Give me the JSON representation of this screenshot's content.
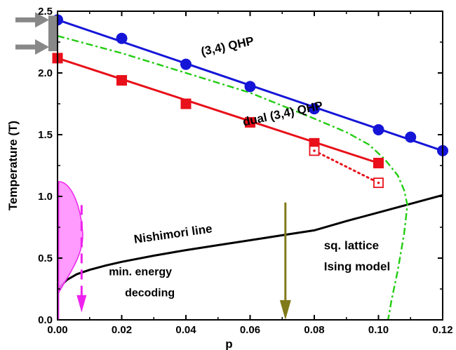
{
  "chart_data": {
    "type": "line",
    "title": "",
    "xlabel": "p",
    "ylabel": "Temperature (T)",
    "xlim": [
      0.0,
      0.12
    ],
    "ylim": [
      0.0,
      2.5
    ],
    "xticks": [
      0.0,
      0.02,
      0.04,
      0.06,
      0.08,
      0.1,
      0.12
    ],
    "xtick_labels": [
      "0.00",
      "0.02",
      "0.04",
      "0.06",
      "0.08",
      "0.10",
      "0.12"
    ],
    "yticks": [
      0.0,
      0.5,
      1.0,
      1.5,
      2.0,
      2.5
    ],
    "ytick_labels": [
      "0.0",
      "0.5",
      "1.0",
      "1.5",
      "2.0",
      "2.5"
    ],
    "grid": false,
    "legend": "none",
    "series": [
      {
        "name": "(3,4) QHP",
        "color": "#1515d8",
        "marker": "circle",
        "points": [
          [
            0.0,
            2.43
          ],
          [
            0.02,
            2.28
          ],
          [
            0.04,
            2.07
          ],
          [
            0.06,
            1.89
          ],
          [
            0.08,
            1.71
          ],
          [
            0.1,
            1.54
          ],
          [
            0.11,
            1.48
          ],
          [
            0.12,
            1.37
          ]
        ],
        "fit": [
          [
            0.0,
            2.43
          ],
          [
            0.12,
            1.37
          ]
        ]
      },
      {
        "name": "dual (3,4) QHP",
        "color": "#e8101a",
        "marker": "square",
        "points": [
          [
            0.0,
            2.12
          ],
          [
            0.02,
            1.94
          ],
          [
            0.04,
            1.75
          ],
          [
            0.06,
            1.6
          ],
          [
            0.08,
            1.43
          ],
          [
            0.1,
            1.27
          ]
        ],
        "fit": [
          [
            0.0,
            2.12
          ],
          [
            0.1,
            1.27
          ]
        ]
      },
      {
        "name": "",
        "color": "#e8101a",
        "marker": "open-square-dot",
        "style": "dotted",
        "points": [
          [
            0.08,
            1.37
          ],
          [
            0.1,
            1.11
          ]
        ]
      },
      {
        "name": "Nishimori line",
        "color": "#000000",
        "style": "solid",
        "points": [
          [
            0.0002,
            0.22
          ],
          [
            0.001,
            0.275
          ],
          [
            0.003,
            0.325
          ],
          [
            0.006,
            0.37
          ],
          [
            0.01,
            0.405
          ],
          [
            0.015,
            0.44
          ],
          [
            0.02,
            0.47
          ],
          [
            0.03,
            0.52
          ],
          [
            0.04,
            0.565
          ],
          [
            0.05,
            0.605
          ],
          [
            0.06,
            0.645
          ],
          [
            0.07,
            0.685
          ],
          [
            0.08,
            0.725
          ],
          [
            0.09,
            0.8
          ],
          [
            0.1,
            0.87
          ],
          [
            0.11,
            0.94
          ],
          [
            0.12,
            1.01
          ]
        ]
      },
      {
        "name": "sq. lattice Ising model",
        "color": "#22cc11",
        "style": "dash-dot",
        "points": [
          [
            0.0,
            2.3
          ],
          [
            0.02,
            2.16
          ],
          [
            0.04,
            2.0
          ],
          [
            0.06,
            1.84
          ],
          [
            0.08,
            1.63
          ],
          [
            0.09,
            1.52
          ],
          [
            0.097,
            1.42
          ],
          [
            0.102,
            1.3
          ],
          [
            0.106,
            1.17
          ],
          [
            0.108,
            1.05
          ],
          [
            0.109,
            0.93
          ],
          [
            0.108,
            0.7
          ],
          [
            0.106,
            0.4
          ],
          [
            0.104,
            0.15
          ],
          [
            0.103,
            0.0
          ]
        ]
      }
    ],
    "annotations": [
      {
        "text": "(3,4) QHP",
        "x": 0.045,
        "y": 2.14,
        "rotation_deg": -12
      },
      {
        "text": "dual (3,4) QHP",
        "x": 0.058,
        "y": 1.57,
        "rotation_deg": -12
      },
      {
        "text": "Nishimori line",
        "x": 0.024,
        "y": 0.62,
        "rotation_deg": -8
      },
      {
        "text": "sq. lattice",
        "x": 0.083,
        "y": 0.57
      },
      {
        "text": "Ising model",
        "x": 0.083,
        "y": 0.4
      },
      {
        "text": "min. energy",
        "x": 0.016,
        "y": 0.36
      },
      {
        "text": "decoding",
        "x": 0.021,
        "y": 0.19
      }
    ],
    "markers": {
      "input_arrows": {
        "color": "#888888",
        "y_values": [
          2.43,
          2.21
        ]
      },
      "decoding_arrow": {
        "color": "#807a1a",
        "x": 0.071,
        "y_from": 0.95,
        "y_to": 0.0
      },
      "distribution": {
        "color": "#ee22ee",
        "fill": "#ff88ff",
        "x_arrow": 0.0075,
        "y_arrow_from": 0.93,
        "y_arrow_to": 0.06
      }
    }
  }
}
